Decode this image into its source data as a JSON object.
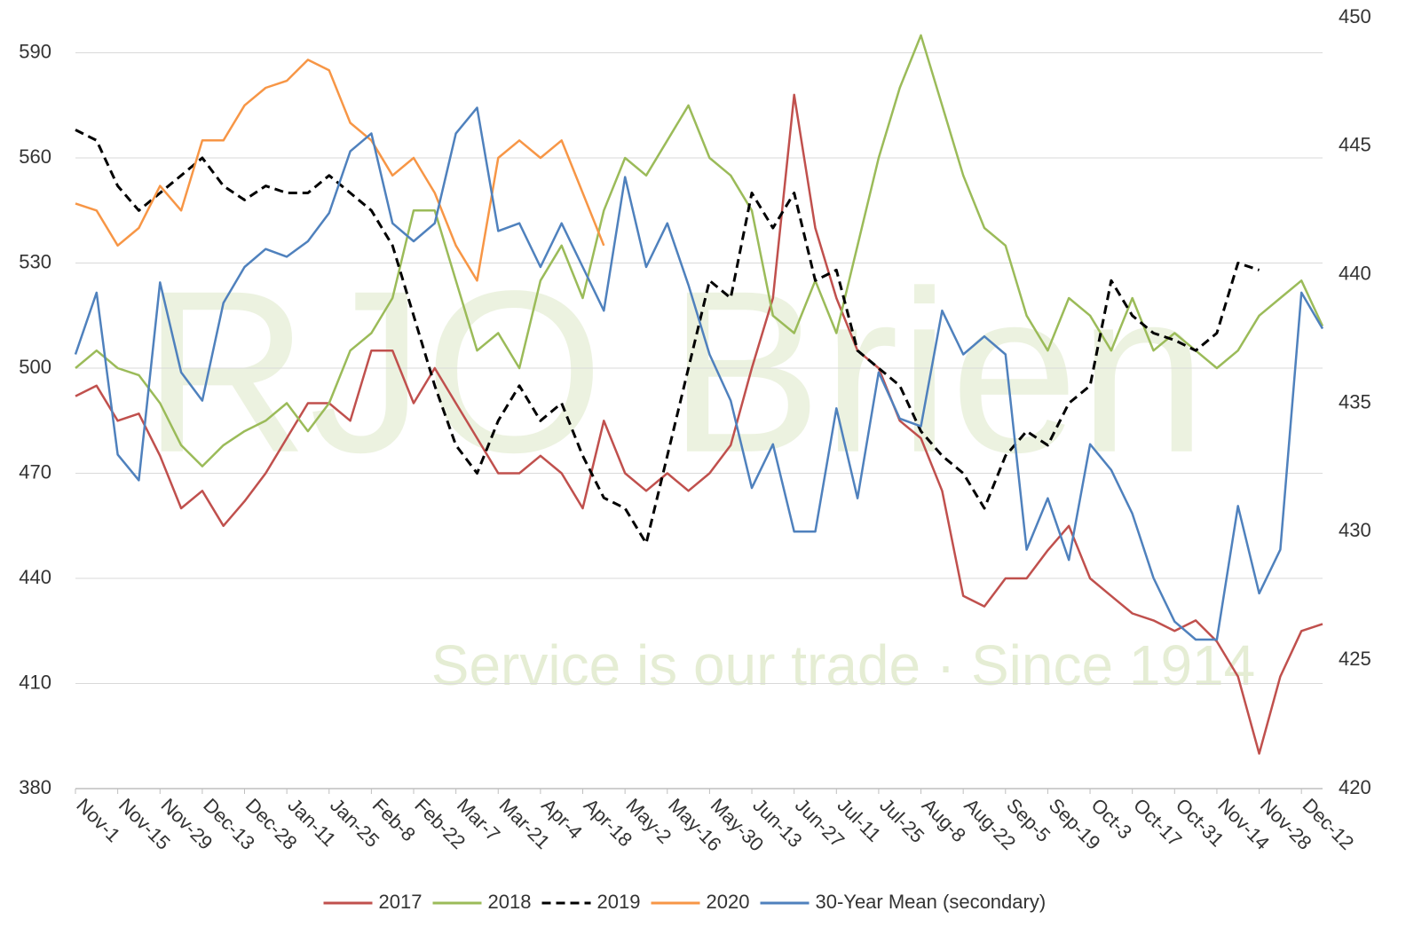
{
  "chart_data": {
    "type": "line",
    "watermark": "RJO Brien",
    "watermark_tagline": "Service is our trade · Since 1914",
    "categories": [
      "Nov-1",
      null,
      "Nov-15",
      null,
      "Nov-29",
      null,
      "Dec-13",
      null,
      "Dec-28",
      null,
      "Jan-11",
      null,
      "Jan-25",
      null,
      "Feb-8",
      null,
      "Feb-22",
      null,
      "Mar-7",
      null,
      "Mar-21",
      null,
      "Apr-4",
      null,
      "Apr-18",
      null,
      "May-2",
      null,
      "May-16",
      null,
      "May-30",
      null,
      "Jun-13",
      null,
      "Jun-27",
      null,
      "Jul-11",
      null,
      "Jul-25",
      null,
      "Aug-8",
      null,
      "Aug-22",
      null,
      "Sep-5",
      null,
      "Sep-19",
      null,
      "Oct-3",
      null,
      "Oct-17",
      null,
      "Oct-31",
      null,
      "Nov-14",
      null,
      "Nov-28",
      null,
      "Dec-12",
      null
    ],
    "ylim": [
      380,
      600
    ],
    "yticks": [
      380,
      410,
      440,
      470,
      500,
      530,
      560,
      590
    ],
    "y2lim": [
      420,
      450
    ],
    "y2ticks": [
      420,
      425,
      430,
      435,
      440,
      445,
      450
    ],
    "grid": true,
    "legend": "bottom",
    "series": [
      {
        "name": "2017",
        "color": "#c0504d",
        "dash": false,
        "values": [
          492,
          495,
          485,
          487,
          475,
          460,
          465,
          455,
          462,
          470,
          480,
          490,
          490,
          485,
          505,
          505,
          490,
          500,
          490,
          480,
          470,
          470,
          475,
          470,
          460,
          485,
          470,
          465,
          470,
          465,
          470,
          478,
          500,
          520,
          578,
          540,
          520,
          505,
          500,
          485,
          480,
          465,
          435,
          432,
          440,
          440,
          448,
          455,
          440,
          435,
          430,
          428,
          425,
          428,
          422,
          412,
          390,
          412,
          425,
          427
        ]
      },
      {
        "name": "2018",
        "color": "#9bbb59",
        "dash": false,
        "values": [
          500,
          505,
          500,
          498,
          490,
          478,
          472,
          478,
          482,
          485,
          490,
          482,
          490,
          505,
          510,
          520,
          545,
          545,
          525,
          505,
          510,
          500,
          525,
          535,
          520,
          545,
          560,
          555,
          565,
          575,
          560,
          555,
          545,
          515,
          510,
          525,
          510,
          535,
          560,
          580,
          595,
          575,
          555,
          540,
          535,
          515,
          505,
          520,
          515,
          505,
          520,
          505,
          510,
          505,
          500,
          505,
          515,
          520,
          525,
          512
        ]
      },
      {
        "name": "2019",
        "color": "#000000",
        "dash": true,
        "values": [
          568,
          565,
          552,
          545,
          550,
          555,
          560,
          552,
          548,
          552,
          550,
          550,
          555,
          550,
          545,
          535,
          515,
          495,
          478,
          470,
          485,
          495,
          485,
          490,
          475,
          463,
          460,
          450,
          475,
          500,
          525,
          520,
          550,
          540,
          550,
          525,
          528,
          505,
          500,
          495,
          482,
          475,
          470,
          460,
          475,
          482,
          478,
          490,
          495,
          525,
          515,
          510,
          508,
          505,
          510,
          530,
          528,
          null,
          null,
          null
        ]
      },
      {
        "name": "2020",
        "color": "#f79646",
        "dash": false,
        "values": [
          547,
          545,
          535,
          540,
          552,
          545,
          565,
          565,
          575,
          580,
          582,
          588,
          585,
          570,
          565,
          555,
          560,
          550,
          535,
          525,
          560,
          565,
          560,
          565,
          550,
          535,
          null,
          null,
          null,
          null,
          null,
          null,
          null,
          null,
          null,
          null,
          null,
          null,
          null,
          null,
          null,
          null,
          null,
          null,
          null,
          null,
          null,
          null,
          null,
          null,
          null,
          null,
          null,
          null,
          null,
          null,
          null,
          null,
          null,
          null
        ]
      },
      {
        "name": "30-Year Mean (secondary)",
        "color": "#4f81bd",
        "dash": false,
        "axis": "y2",
        "values": [
          436.9,
          439.3,
          433,
          432,
          439.7,
          436.2,
          435.1,
          438.9,
          440.3,
          441,
          440.7,
          441.3,
          442.4,
          444.8,
          445.5,
          442,
          441.3,
          442,
          445.5,
          446.5,
          441.7,
          442,
          440.3,
          442,
          440.3,
          438.6,
          443.8,
          440.3,
          442,
          439.6,
          436.9,
          435.1,
          431.7,
          433.4,
          430,
          430,
          434.8,
          431.3,
          436.2,
          434.4,
          434.1,
          438.6,
          436.9,
          437.6,
          436.9,
          429.3,
          431.3,
          428.9,
          433.4,
          432.4,
          430.7,
          428.2,
          426.5,
          425.8,
          425.8,
          431,
          427.6,
          429.3,
          439.3,
          437.9
        ]
      }
    ]
  }
}
